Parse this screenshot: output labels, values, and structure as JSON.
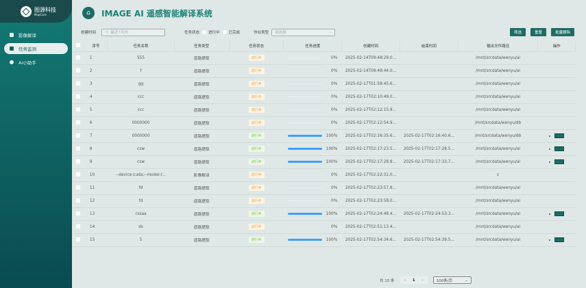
{
  "sidebar": {
    "brand": "图源科技",
    "brand_sub": "MapCore",
    "items": [
      {
        "label": "影像解译",
        "active": false
      },
      {
        "label": "任务监测",
        "active": true
      },
      {
        "label": "AI小助手",
        "active": false
      }
    ]
  },
  "header": {
    "title": "IMAGE AI 遥感智能解译系统"
  },
  "filters": {
    "created_label": "创建时间",
    "created_placeholder": "最近7天内",
    "status_label": "任务状态",
    "status_opt1": "进行中",
    "status_opt2": "已完成",
    "type_label": "作业类型",
    "type_placeholder": "请选择",
    "filter_btn": "筛选",
    "reset_btn": "重置",
    "batch_delete_btn": "批量删除"
  },
  "table": {
    "columns": [
      "序号",
      "任务名称",
      "任务类型",
      "任务状态",
      "任务进度",
      "创建时间",
      "结束时间",
      "输出文件路径",
      "操作"
    ],
    "rows": [
      {
        "no": "1",
        "name": "555",
        "type": "道路提取",
        "status": "进行中",
        "status_color": "orange",
        "progress": "0%",
        "created": "2025-02-14T09:48:29.0...",
        "ended": "",
        "path": "/mnt/srcdata/wenyu/ai",
        "action": false
      },
      {
        "no": "2",
        "name": "f",
        "type": "道路提取",
        "status": "进行中",
        "status_color": "orange",
        "progress": "0%",
        "created": "2025-02-14T09:48:44.0...",
        "ended": "",
        "path": "/mnt/srcdata/wenyu/ai",
        "action": false
      },
      {
        "no": "3",
        "name": "gg",
        "type": "道路提取",
        "status": "进行中",
        "status_color": "orange",
        "progress": "0%",
        "created": "2025-02-17T01:58:45.6...",
        "ended": "",
        "path": "/mnt/srcdata/wenyu/ai",
        "action": false
      },
      {
        "no": "4",
        "name": "ccc",
        "type": "道路提取",
        "status": "进行中",
        "status_color": "orange",
        "progress": "0%",
        "created": "2025-02-17T02:10:49.0...",
        "ended": "",
        "path": "/mnt/srcdata/wenyu/ai",
        "action": false
      },
      {
        "no": "5",
        "name": "ccc",
        "type": "道路提取",
        "status": "进行中",
        "status_color": "orange",
        "progress": "0%",
        "created": "2025-02-17T02:12:15.9...",
        "ended": "",
        "path": "/mnt/srcdata/wenyu/ai",
        "action": false
      },
      {
        "no": "6",
        "name": "0000000",
        "type": "道路提取",
        "status": "进行中",
        "status_color": "orange",
        "progress": "0%",
        "created": "2025-02-17T02:12:54.9...",
        "ended": "",
        "path": "/mnt/srcdata/wenyu/db",
        "action": false
      },
      {
        "no": "7",
        "name": "0000000",
        "type": "道路提取",
        "status": "进行中",
        "status_color": "green",
        "progress": "100%",
        "created": "2025-02-17T02:16:35.6...",
        "ended": "2025-02-17T02:16:40.6...",
        "path": "/mnt/srcdata/wenyu/db",
        "action": true
      },
      {
        "no": "8",
        "name": "csw",
        "type": "道路提取",
        "status": "进行中",
        "status_color": "green",
        "progress": "100%",
        "created": "2025-02-17T02:17:23.5...",
        "ended": "2025-02-17T02:17:28.5...",
        "path": "/mnt/srcdata/wenyu/ai",
        "action": true
      },
      {
        "no": "9",
        "name": "csw",
        "type": "道路提取",
        "status": "进行中",
        "status_color": "green",
        "progress": "100%",
        "created": "2025-02-17T02:17:28.8...",
        "ended": "2025-02-17T02:17:33.7...",
        "path": "/mnt/srcdata/wenyu/ai",
        "action": true
      },
      {
        "no": "10",
        "name": "--device:cuda;--model:r...",
        "type": "影像解译",
        "status": "进行中",
        "status_color": "orange",
        "progress": "0%",
        "created": "2025-02-17T02:22:31.0...",
        "ended": "",
        "path": "c",
        "action": false
      },
      {
        "no": "11",
        "name": "fd",
        "type": "道路提取",
        "status": "进行中",
        "status_color": "orange",
        "progress": "0%",
        "created": "2025-02-17T02:23:57.8...",
        "ended": "",
        "path": "/mnt/srcdata/wenyu/ai",
        "action": false
      },
      {
        "no": "12",
        "name": "fd",
        "type": "道路提取",
        "status": "进行中",
        "status_color": "orange",
        "progress": "0%",
        "created": "2025-02-17T02:23:58.0...",
        "ended": "",
        "path": "/mnt/srcdata/wenyu/ai",
        "action": false
      },
      {
        "no": "13",
        "name": "cssaa",
        "type": "道路提取",
        "status": "进行中",
        "status_color": "green",
        "progress": "100%",
        "created": "2025-02-17T02:24:48.4...",
        "ended": "2025-02-17T02:24:53.3...",
        "path": "/mnt/srcdata/wenyu/ai",
        "action": true
      },
      {
        "no": "14",
        "name": "ds",
        "type": "道路提取",
        "status": "进行中",
        "status_color": "orange",
        "progress": "0%",
        "created": "2025-02-17T02:51:13.4...",
        "ended": "",
        "path": "/mnt/srcdata/wenyu/ai",
        "action": false
      },
      {
        "no": "15",
        "name": "5",
        "type": "道路提取",
        "status": "进行中",
        "status_color": "green",
        "progress": "100%",
        "created": "2025-02-17T02:54:34.6...",
        "ended": "2025-02-17T02:54:39.5...",
        "path": "/mnt/srcdata/wenyu/ai",
        "action": true
      }
    ]
  },
  "pagination": {
    "total": "共 15 条",
    "page": "1",
    "page_size": "100条/页"
  },
  "colors": {
    "accent": "#1d6b66",
    "progress": "#409eff"
  }
}
